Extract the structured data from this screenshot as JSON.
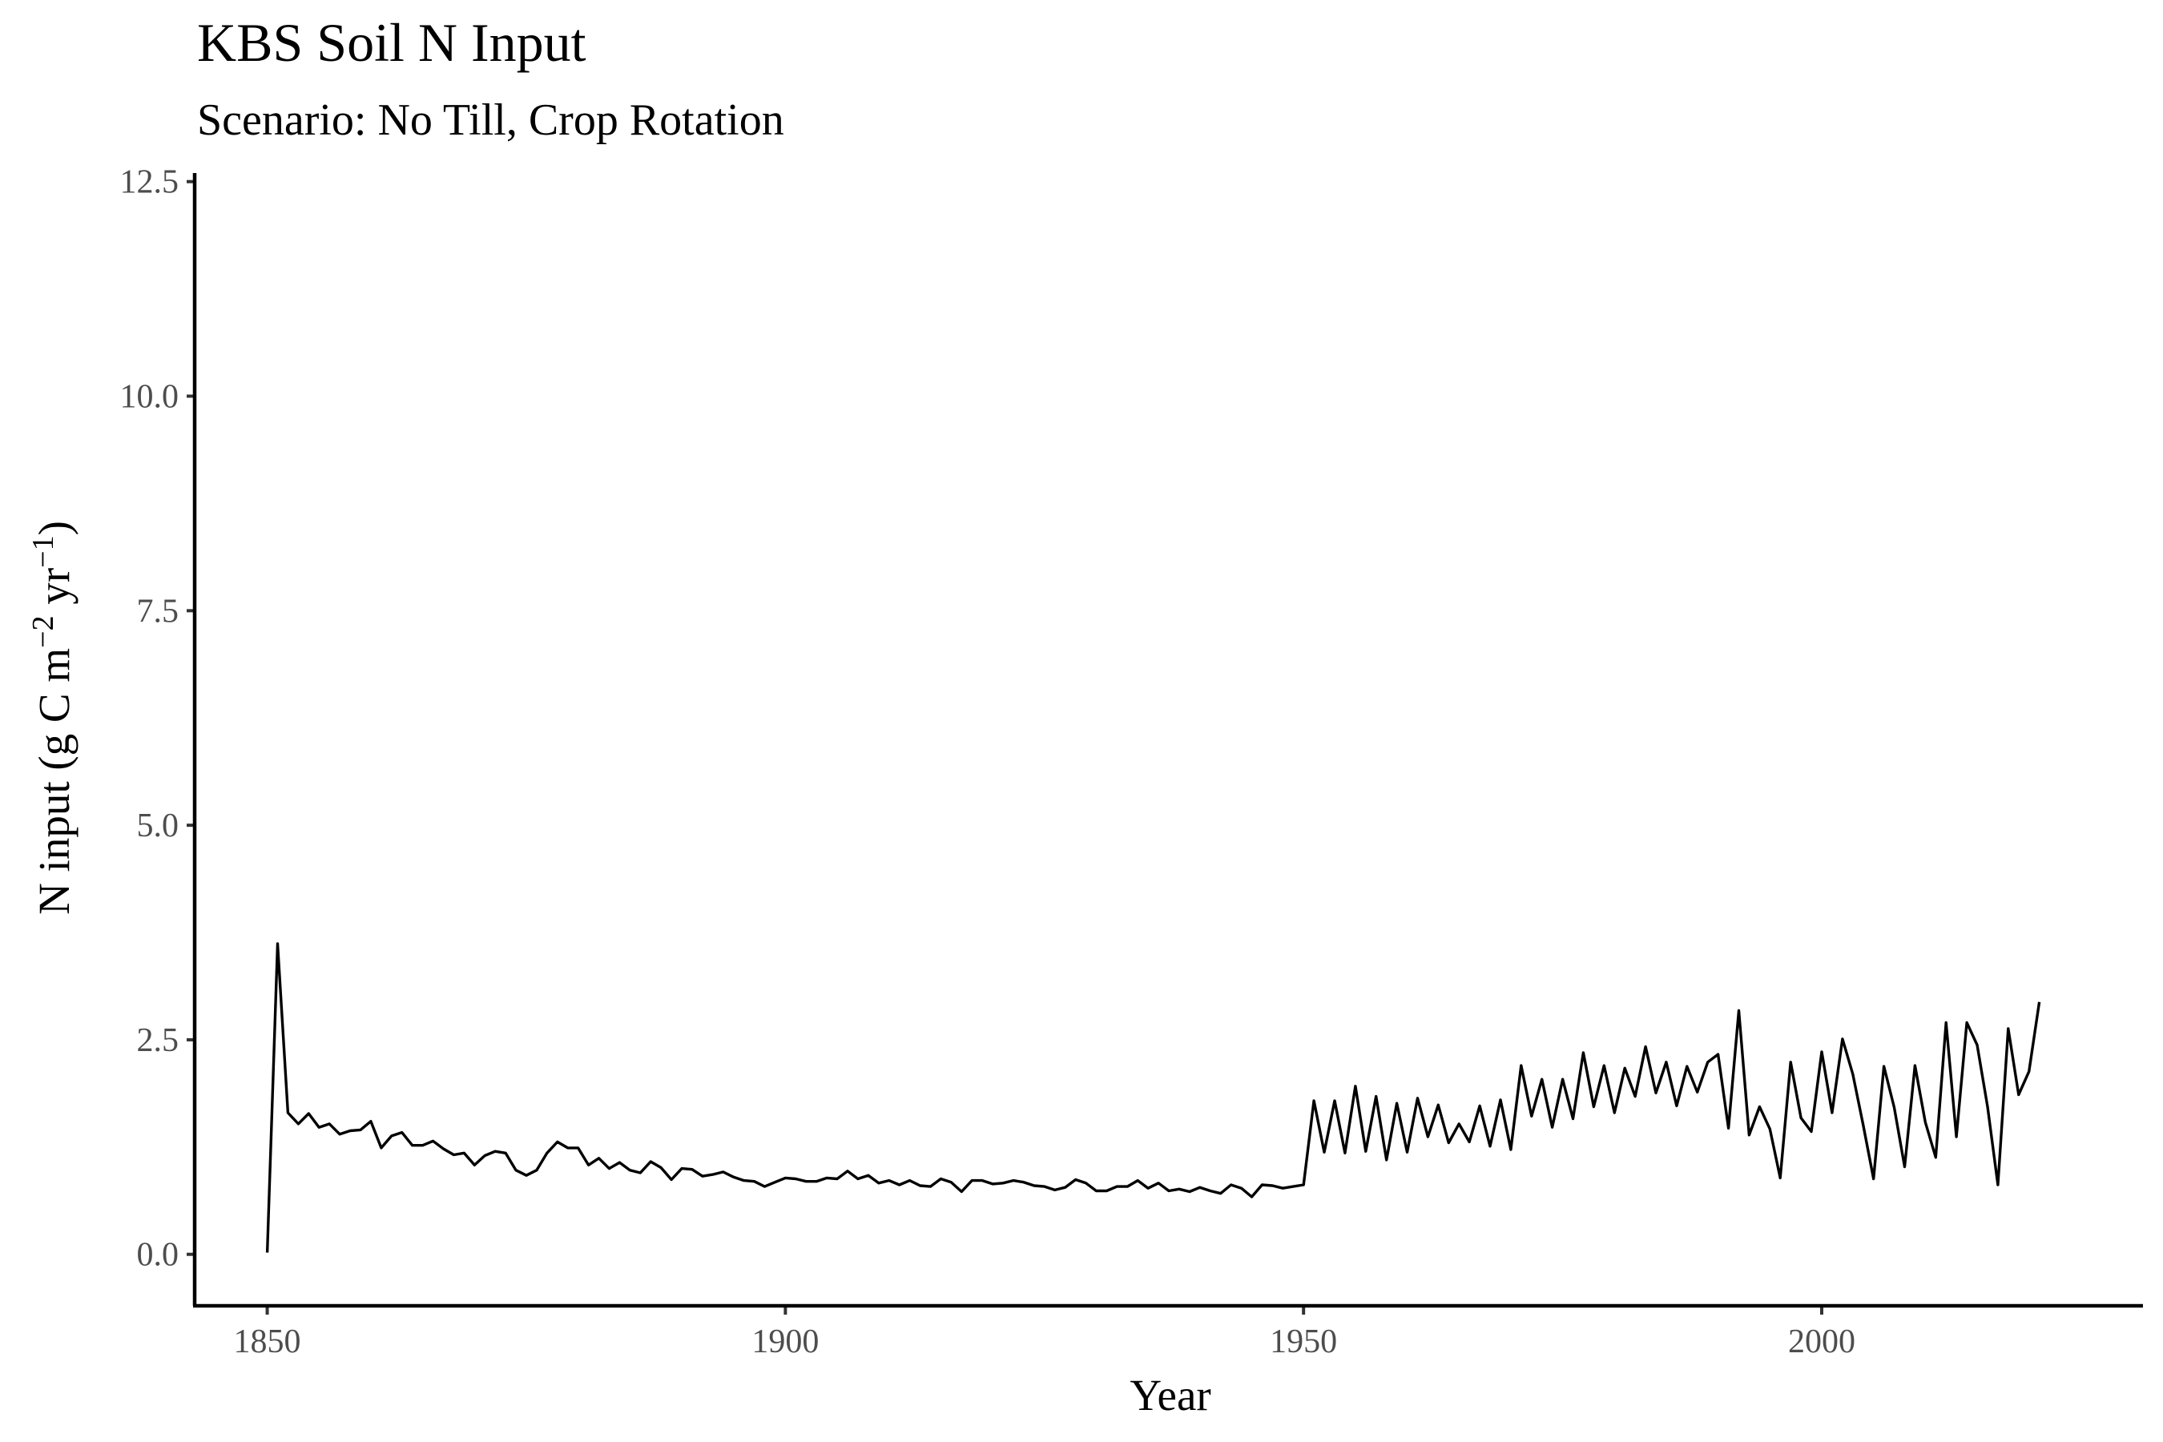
{
  "chart_data": {
    "type": "line",
    "title": "KBS Soil N Input",
    "subtitle": "Scenario: No Till, Crop Rotation",
    "xlabel": "Year",
    "ylabel_main": "N input (g C m",
    "ylabel_sup1": "−2",
    "ylabel_mid": " yr",
    "ylabel_sup2": "−1",
    "ylabel_end": ")",
    "xlim": [
      1843,
      2031
    ],
    "ylim": [
      -0.6,
      12.6
    ],
    "x_ticks": [
      1850,
      1900,
      1950,
      2000
    ],
    "x_tick_labels": [
      "1850",
      "1900",
      "1950",
      "2000"
    ],
    "y_ticks": [
      0,
      2.5,
      5,
      7.5,
      10,
      12.5
    ],
    "y_tick_labels": [
      "0.0",
      "2.5",
      "5.0",
      "7.5",
      "10.0",
      "12.5"
    ],
    "grid": false,
    "legend": "none",
    "series": [
      {
        "color": "#000000",
        "x": [
          1850,
          1851,
          1852,
          1853,
          1854,
          1855,
          1856,
          1857,
          1858,
          1859,
          1860,
          1861,
          1862,
          1863,
          1864,
          1865,
          1866,
          1867,
          1868,
          1869,
          1870,
          1871,
          1872,
          1873,
          1874,
          1875,
          1876,
          1877,
          1878,
          1879,
          1880,
          1881,
          1882,
          1883,
          1884,
          1885,
          1886,
          1887,
          1888,
          1889,
          1890,
          1891,
          1892,
          1893,
          1894,
          1895,
          1896,
          1897,
          1898,
          1899,
          1900,
          1901,
          1902,
          1903,
          1904,
          1905,
          1906,
          1907,
          1908,
          1909,
          1910,
          1911,
          1912,
          1913,
          1914,
          1915,
          1916,
          1917,
          1918,
          1919,
          1920,
          1921,
          1922,
          1923,
          1924,
          1925,
          1926,
          1927,
          1928,
          1929,
          1930,
          1931,
          1932,
          1933,
          1934,
          1935,
          1936,
          1937,
          1938,
          1939,
          1940,
          1941,
          1942,
          1943,
          1944,
          1945,
          1946,
          1947,
          1948,
          1949,
          1950,
          1951,
          1952,
          1953,
          1954,
          1955,
          1956,
          1957,
          1958,
          1959,
          1960,
          1961,
          1962,
          1963,
          1964,
          1965,
          1966,
          1967,
          1968,
          1969,
          1970,
          1971,
          1972,
          1973,
          1974,
          1975,
          1976,
          1977,
          1978,
          1979,
          1980,
          1981,
          1982,
          1983,
          1984,
          1985,
          1986,
          1987,
          1988,
          1989,
          1990,
          1991,
          1992,
          1993,
          1994,
          1995,
          1996,
          1997,
          1998,
          1999,
          2000,
          2001,
          2002,
          2003,
          2004,
          2005,
          2006,
          2007,
          2008,
          2009,
          2010,
          2011,
          2012,
          2013,
          2014,
          2015,
          2016,
          2017,
          2018,
          2019,
          2020,
          2021
        ],
        "y": [
          0.02,
          3.62,
          1.65,
          1.52,
          1.64,
          1.48,
          1.52,
          1.4,
          1.44,
          1.45,
          1.55,
          1.24,
          1.38,
          1.42,
          1.27,
          1.27,
          1.32,
          1.23,
          1.16,
          1.18,
          1.04,
          1.15,
          1.2,
          1.18,
          0.98,
          0.92,
          0.98,
          1.18,
          1.31,
          1.24,
          1.24,
          1.04,
          1.12,
          1.0,
          1.07,
          0.98,
          0.95,
          1.08,
          1.01,
          0.87,
          1.0,
          0.99,
          0.91,
          0.93,
          0.96,
          0.9,
          0.86,
          0.85,
          0.79,
          0.84,
          0.89,
          0.88,
          0.85,
          0.85,
          0.89,
          0.88,
          0.97,
          0.88,
          0.92,
          0.83,
          0.86,
          0.81,
          0.86,
          0.8,
          0.79,
          0.88,
          0.84,
          0.73,
          0.86,
          0.86,
          0.82,
          0.83,
          0.86,
          0.84,
          0.8,
          0.79,
          0.75,
          0.78,
          0.87,
          0.83,
          0.74,
          0.74,
          0.79,
          0.79,
          0.86,
          0.77,
          0.83,
          0.74,
          0.76,
          0.73,
          0.78,
          0.74,
          0.71,
          0.81,
          0.77,
          0.67,
          0.81,
          0.8,
          0.77,
          0.79,
          0.81,
          1.79,
          1.19,
          1.79,
          1.18,
          1.96,
          1.2,
          1.84,
          1.1,
          1.76,
          1.19,
          1.82,
          1.37,
          1.74,
          1.3,
          1.52,
          1.31,
          1.73,
          1.26,
          1.8,
          1.22,
          2.2,
          1.61,
          2.04,
          1.48,
          2.04,
          1.58,
          2.35,
          1.72,
          2.2,
          1.65,
          2.17,
          1.84,
          2.42,
          1.88,
          2.24,
          1.73,
          2.19,
          1.89,
          2.24,
          2.33,
          1.47,
          2.84,
          1.39,
          1.72,
          1.46,
          0.89,
          2.24,
          1.59,
          1.43,
          2.36,
          1.65,
          2.51,
          2.1,
          1.51,
          0.88,
          2.19,
          1.71,
          1.02,
          2.2,
          1.54,
          1.13,
          2.7,
          1.37,
          2.7,
          2.44,
          1.72,
          0.81,
          2.63,
          1.86,
          2.13,
          2.94
        ]
      }
    ]
  }
}
